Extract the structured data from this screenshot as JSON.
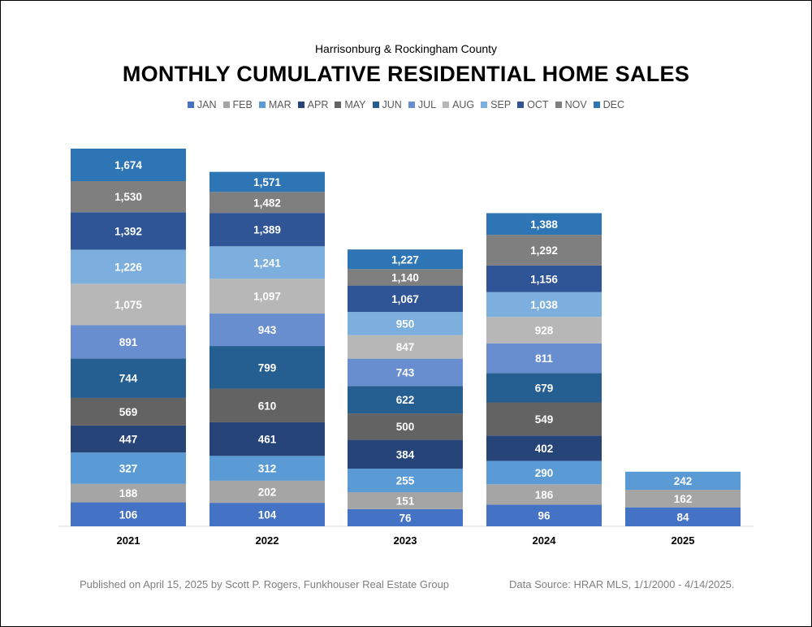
{
  "header": {
    "subtitle": "Harrisonburg & Rockingham County",
    "title": "MONTHLY CUMULATIVE RESIDENTIAL HOME SALES"
  },
  "legend": [
    {
      "label": "JAN",
      "color": "#4472C4"
    },
    {
      "label": "FEB",
      "color": "#A5A5A5"
    },
    {
      "label": "MAR",
      "color": "#5B9BD5"
    },
    {
      "label": "APR",
      "color": "#264478"
    },
    {
      "label": "MAY",
      "color": "#636363"
    },
    {
      "label": "JUN",
      "color": "#255E91"
    },
    {
      "label": "JUL",
      "color": "#698ED0"
    },
    {
      "label": "AUG",
      "color": "#B7B7B7"
    },
    {
      "label": "SEP",
      "color": "#7CAFDD"
    },
    {
      "label": "OCT",
      "color": "#2F5597"
    },
    {
      "label": "NOV",
      "color": "#7F7F7F"
    },
    {
      "label": "DEC",
      "color": "#2E75B6"
    }
  ],
  "chart_data": {
    "type": "bar",
    "stacked": false,
    "overlapping_cumulative": true,
    "categories": [
      "2021",
      "2022",
      "2023",
      "2024",
      "2025"
    ],
    "series": [
      {
        "name": "JAN",
        "values": [
          106,
          104,
          76,
          96,
          84
        ]
      },
      {
        "name": "FEB",
        "values": [
          188,
          202,
          151,
          186,
          162
        ]
      },
      {
        "name": "MAR",
        "values": [
          327,
          312,
          255,
          290,
          242
        ]
      },
      {
        "name": "APR",
        "values": [
          447,
          461,
          384,
          402,
          null
        ]
      },
      {
        "name": "MAY",
        "values": [
          569,
          610,
          500,
          549,
          null
        ]
      },
      {
        "name": "JUN",
        "values": [
          744,
          799,
          622,
          679,
          null
        ]
      },
      {
        "name": "JUL",
        "values": [
          891,
          943,
          743,
          811,
          null
        ]
      },
      {
        "name": "AUG",
        "values": [
          1075,
          1097,
          847,
          928,
          null
        ]
      },
      {
        "name": "SEP",
        "values": [
          1226,
          1241,
          950,
          1038,
          null
        ]
      },
      {
        "name": "OCT",
        "values": [
          1392,
          1389,
          1067,
          1156,
          null
        ]
      },
      {
        "name": "NOV",
        "values": [
          1530,
          1482,
          1140,
          1292,
          null
        ]
      },
      {
        "name": "DEC",
        "values": [
          1674,
          1571,
          1227,
          1388,
          null
        ]
      }
    ],
    "ylim": [
      0,
      1700
    ],
    "grid": false,
    "legend_position": "top",
    "xlabel": "",
    "ylabel": ""
  },
  "footer": {
    "published": "Published on April 15, 2025 by Scott P. Rogers, Funkhouser Real Estate Group",
    "source": "Data Source: HRAR MLS, 1/1/2000 - 4/14/2025."
  }
}
